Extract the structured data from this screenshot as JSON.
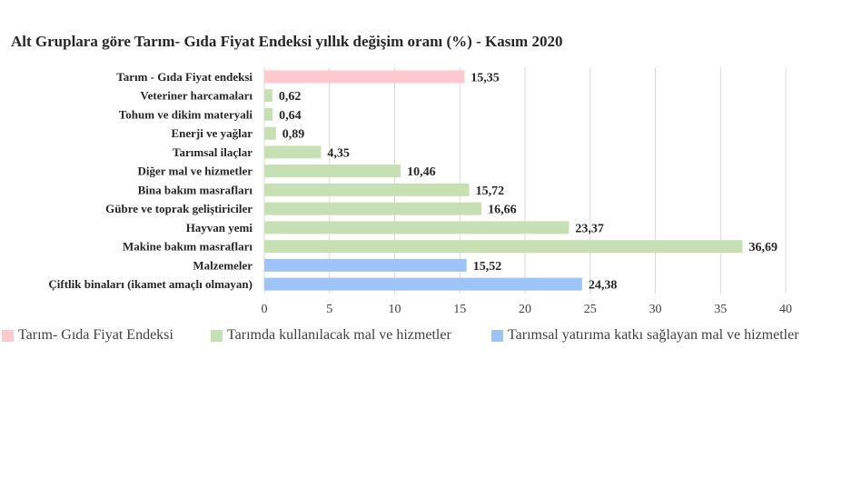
{
  "chart_data": {
    "type": "bar",
    "orientation": "horizontal",
    "title": "Alt Gruplara göre Tarım- Gıda Fiyat Endeksi yıllık değişim oranı (%) - Kasım 2020",
    "categories": [
      "Tarım - Gıda Fiyat endeksi",
      "Veteriner harcamaları",
      "Tohum ve dikim materyali",
      "Enerji ve yağlar",
      "Tarımsal ilaçlar",
      "Diğer mal ve hizmetler",
      "Bina bakım masrafları",
      "Gübre ve toprak geliştiriciler",
      "Hayvan yemi",
      "Makine bakım masrafları",
      "Malzemeler",
      "Çiftlik binaları (ikamet amaçlı olmayan)"
    ],
    "values": [
      15.35,
      0.62,
      0.64,
      0.89,
      4.35,
      10.46,
      15.72,
      16.66,
      23.37,
      36.69,
      15.52,
      24.38
    ],
    "value_labels": [
      "15,35",
      "0,62",
      "0,64",
      "0,89",
      "4,35",
      "10,46",
      "15,72",
      "16,66",
      "23,37",
      "36,69",
      "15,52",
      "24,38"
    ],
    "group_index": [
      0,
      1,
      1,
      1,
      1,
      1,
      1,
      1,
      1,
      1,
      2,
      2
    ],
    "groups": [
      {
        "name": "Tarım- Gıda Fiyat Endeksi",
        "color": "#ffc7ce"
      },
      {
        "name": "Tarımda kullanılacak mal ve hizmetler",
        "color": "#c6e0b4"
      },
      {
        "name": "Tarımsal yatırıma katkı sağlayan mal ve hizmetler",
        "color": "#9dc3f7"
      }
    ],
    "xlim": [
      0,
      40
    ],
    "xticks": [
      0,
      5,
      10,
      15,
      20,
      25,
      30,
      35,
      40
    ],
    "grid": true,
    "legend": "bottom",
    "xlabel": "",
    "ylabel": ""
  }
}
